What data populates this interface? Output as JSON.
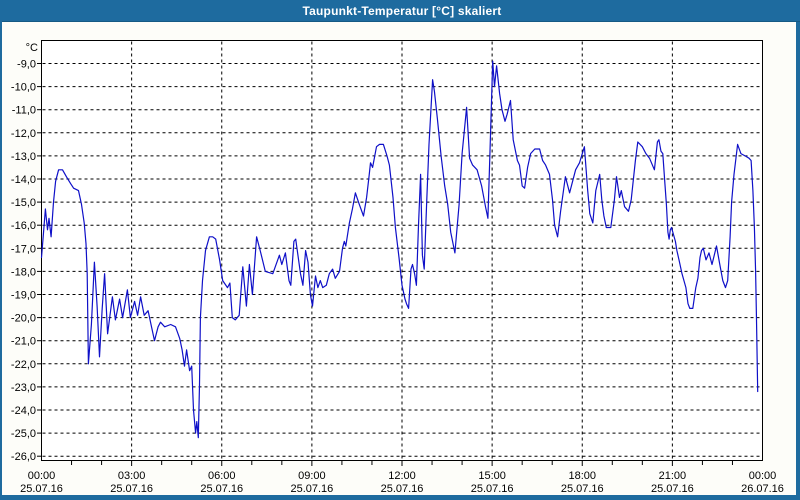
{
  "window": {
    "title": "Taupunkt-Temperatur [°C] skaliert",
    "titlebar_color": "#1e6b9f",
    "background_color": "#fdfdf9"
  },
  "chart_data": {
    "type": "line",
    "title": "Taupunkt-Temperatur [°C] skaliert",
    "unit_label": "°C",
    "line_color": "#0f10c8",
    "grid": "dashed",
    "grid_color": "#000000",
    "plot_background": "#ffffff",
    "legend_position": "none",
    "y_axis": {
      "min": -26.0,
      "max": -9.0,
      "tick_step": 1.0,
      "tick_labels": [
        "-9,0",
        "-10,0",
        "-11,0",
        "-12,0",
        "-13,0",
        "-14,0",
        "-15,0",
        "-16,0",
        "-17,0",
        "-18,0",
        "-19,0",
        "-20,0",
        "-21,0",
        "-22,0",
        "-23,0",
        "-24,0",
        "-25,0",
        "-26,0"
      ]
    },
    "x_axis": {
      "min_hour": 0,
      "max_hour": 24,
      "major_tick_hours": 3,
      "minor_tick_hours": 1,
      "tick_labels": [
        {
          "time": "00:00",
          "date": "25.07.16"
        },
        {
          "time": "03:00",
          "date": "25.07.16"
        },
        {
          "time": "06:00",
          "date": "25.07.16"
        },
        {
          "time": "09:00",
          "date": "25.07.16"
        },
        {
          "time": "12:00",
          "date": "25.07.16"
        },
        {
          "time": "15:00",
          "date": "25.07.16"
        },
        {
          "time": "18:00",
          "date": "25.07.16"
        },
        {
          "time": "21:00",
          "date": "25.07.16"
        },
        {
          "time": "00:00",
          "date": "26.07.16"
        }
      ]
    },
    "series": [
      {
        "name": "Taupunkt-Temperatur",
        "points": [
          [
            0.0,
            -17.4
          ],
          [
            0.05,
            -16.6
          ],
          [
            0.13,
            -15.3
          ],
          [
            0.2,
            -16.2
          ],
          [
            0.25,
            -15.7
          ],
          [
            0.32,
            -16.5
          ],
          [
            0.4,
            -15.0
          ],
          [
            0.47,
            -14.1
          ],
          [
            0.57,
            -13.6
          ],
          [
            0.7,
            -13.6
          ],
          [
            0.83,
            -13.9
          ],
          [
            0.97,
            -14.2
          ],
          [
            1.07,
            -14.4
          ],
          [
            1.23,
            -14.5
          ],
          [
            1.33,
            -15.1
          ],
          [
            1.42,
            -15.9
          ],
          [
            1.48,
            -16.8
          ],
          [
            1.52,
            -18.1
          ],
          [
            1.56,
            -22.0
          ],
          [
            1.66,
            -20.3
          ],
          [
            1.76,
            -17.6
          ],
          [
            1.85,
            -19.5
          ],
          [
            1.93,
            -21.7
          ],
          [
            2.02,
            -19.6
          ],
          [
            2.1,
            -18.1
          ],
          [
            2.2,
            -20.7
          ],
          [
            2.36,
            -19.1
          ],
          [
            2.46,
            -20.1
          ],
          [
            2.6,
            -19.2
          ],
          [
            2.7,
            -20.0
          ],
          [
            2.86,
            -18.8
          ],
          [
            2.96,
            -20.0
          ],
          [
            3.1,
            -19.3
          ],
          [
            3.2,
            -19.9
          ],
          [
            3.3,
            -19.1
          ],
          [
            3.42,
            -19.9
          ],
          [
            3.55,
            -19.7
          ],
          [
            3.66,
            -20.4
          ],
          [
            3.76,
            -21.0
          ],
          [
            3.88,
            -20.4
          ],
          [
            3.96,
            -20.2
          ],
          [
            4.1,
            -20.4
          ],
          [
            4.3,
            -20.3
          ],
          [
            4.46,
            -20.4
          ],
          [
            4.6,
            -20.9
          ],
          [
            4.68,
            -21.4
          ],
          [
            4.76,
            -22.1
          ],
          [
            4.83,
            -21.4
          ],
          [
            4.93,
            -22.3
          ],
          [
            5.0,
            -22.1
          ],
          [
            5.06,
            -24.0
          ],
          [
            5.13,
            -25.0
          ],
          [
            5.17,
            -24.5
          ],
          [
            5.22,
            -25.2
          ],
          [
            5.26,
            -22.9
          ],
          [
            5.29,
            -20.0
          ],
          [
            5.36,
            -18.4
          ],
          [
            5.46,
            -17.1
          ],
          [
            5.59,
            -16.5
          ],
          [
            5.7,
            -16.5
          ],
          [
            5.8,
            -16.6
          ],
          [
            5.93,
            -17.5
          ],
          [
            6.03,
            -18.4
          ],
          [
            6.19,
            -18.7
          ],
          [
            6.27,
            -18.5
          ],
          [
            6.35,
            -20.0
          ],
          [
            6.45,
            -20.1
          ],
          [
            6.58,
            -19.9
          ],
          [
            6.7,
            -17.8
          ],
          [
            6.82,
            -19.5
          ],
          [
            6.92,
            -17.7
          ],
          [
            7.02,
            -19.0
          ],
          [
            7.16,
            -16.5
          ],
          [
            7.28,
            -17.1
          ],
          [
            7.45,
            -18.0
          ],
          [
            7.7,
            -18.1
          ],
          [
            7.92,
            -17.3
          ],
          [
            8.0,
            -17.7
          ],
          [
            8.12,
            -17.2
          ],
          [
            8.24,
            -18.4
          ],
          [
            8.3,
            -18.6
          ],
          [
            8.4,
            -16.7
          ],
          [
            8.46,
            -16.6
          ],
          [
            8.62,
            -18.1
          ],
          [
            8.7,
            -18.6
          ],
          [
            8.79,
            -17.1
          ],
          [
            8.87,
            -17.6
          ],
          [
            8.95,
            -19.0
          ],
          [
            9.02,
            -19.5
          ],
          [
            9.12,
            -18.2
          ],
          [
            9.2,
            -18.7
          ],
          [
            9.28,
            -18.4
          ],
          [
            9.36,
            -18.7
          ],
          [
            9.48,
            -18.6
          ],
          [
            9.58,
            -18.1
          ],
          [
            9.69,
            -17.9
          ],
          [
            9.78,
            -18.3
          ],
          [
            9.92,
            -18.0
          ],
          [
            10.02,
            -17.0
          ],
          [
            10.08,
            -16.7
          ],
          [
            10.13,
            -16.9
          ],
          [
            10.25,
            -15.9
          ],
          [
            10.35,
            -15.3
          ],
          [
            10.45,
            -14.6
          ],
          [
            10.58,
            -15.1
          ],
          [
            10.72,
            -15.6
          ],
          [
            10.82,
            -14.8
          ],
          [
            10.9,
            -13.9
          ],
          [
            10.95,
            -13.3
          ],
          [
            11.02,
            -13.5
          ],
          [
            11.15,
            -12.6
          ],
          [
            11.25,
            -12.5
          ],
          [
            11.38,
            -12.5
          ],
          [
            11.5,
            -13.0
          ],
          [
            11.58,
            -13.4
          ],
          [
            11.7,
            -14.8
          ],
          [
            11.78,
            -16.1
          ],
          [
            11.9,
            -17.4
          ],
          [
            12.0,
            -18.6
          ],
          [
            12.1,
            -19.2
          ],
          [
            12.15,
            -19.4
          ],
          [
            12.22,
            -19.6
          ],
          [
            12.3,
            -17.9
          ],
          [
            12.35,
            -17.7
          ],
          [
            12.42,
            -18.1
          ],
          [
            12.48,
            -18.6
          ],
          [
            12.55,
            -16.0
          ],
          [
            12.62,
            -13.8
          ],
          [
            12.68,
            -17.3
          ],
          [
            12.74,
            -17.9
          ],
          [
            12.82,
            -15.1
          ],
          [
            12.9,
            -12.5
          ],
          [
            13.02,
            -9.7
          ],
          [
            13.08,
            -10.2
          ],
          [
            13.18,
            -11.4
          ],
          [
            13.3,
            -13.0
          ],
          [
            13.42,
            -14.3
          ],
          [
            13.52,
            -15.1
          ],
          [
            13.62,
            -16.3
          ],
          [
            13.76,
            -17.2
          ],
          [
            13.9,
            -15.1
          ],
          [
            14.0,
            -12.9
          ],
          [
            14.15,
            -10.9
          ],
          [
            14.25,
            -13.1
          ],
          [
            14.35,
            -13.4
          ],
          [
            14.5,
            -13.6
          ],
          [
            14.65,
            -14.3
          ],
          [
            14.78,
            -15.2
          ],
          [
            14.86,
            -15.7
          ],
          [
            14.93,
            -12.8
          ],
          [
            15.02,
            -8.9
          ],
          [
            15.08,
            -10.0
          ],
          [
            15.15,
            -9.1
          ],
          [
            15.25,
            -10.3
          ],
          [
            15.33,
            -11.0
          ],
          [
            15.43,
            -11.5
          ],
          [
            15.5,
            -11.2
          ],
          [
            15.61,
            -10.6
          ],
          [
            15.7,
            -12.3
          ],
          [
            15.84,
            -13.2
          ],
          [
            15.91,
            -13.4
          ],
          [
            16.0,
            -14.3
          ],
          [
            16.08,
            -14.4
          ],
          [
            16.18,
            -13.5
          ],
          [
            16.28,
            -12.9
          ],
          [
            16.42,
            -12.7
          ],
          [
            16.58,
            -12.7
          ],
          [
            16.68,
            -13.2
          ],
          [
            16.78,
            -13.4
          ],
          [
            16.91,
            -13.8
          ],
          [
            17.01,
            -14.9
          ],
          [
            17.08,
            -16.0
          ],
          [
            17.18,
            -16.5
          ],
          [
            17.28,
            -15.4
          ],
          [
            17.44,
            -13.9
          ],
          [
            17.58,
            -14.6
          ],
          [
            17.68,
            -14.1
          ],
          [
            17.78,
            -13.6
          ],
          [
            17.91,
            -13.3
          ],
          [
            18.07,
            -12.6
          ],
          [
            18.18,
            -14.5
          ],
          [
            18.25,
            -15.5
          ],
          [
            18.35,
            -15.9
          ],
          [
            18.45,
            -14.5
          ],
          [
            18.58,
            -13.8
          ],
          [
            18.65,
            -14.9
          ],
          [
            18.72,
            -15.6
          ],
          [
            18.8,
            -16.1
          ],
          [
            18.95,
            -16.1
          ],
          [
            19.07,
            -14.9
          ],
          [
            19.14,
            -13.9
          ],
          [
            19.24,
            -14.8
          ],
          [
            19.3,
            -14.5
          ],
          [
            19.41,
            -15.2
          ],
          [
            19.54,
            -15.4
          ],
          [
            19.63,
            -14.9
          ],
          [
            19.77,
            -13.2
          ],
          [
            19.85,
            -12.4
          ],
          [
            20.0,
            -12.6
          ],
          [
            20.12,
            -12.9
          ],
          [
            20.24,
            -13.1
          ],
          [
            20.4,
            -13.6
          ],
          [
            20.5,
            -12.4
          ],
          [
            20.55,
            -12.3
          ],
          [
            20.62,
            -12.8
          ],
          [
            20.68,
            -12.9
          ],
          [
            20.75,
            -14.2
          ],
          [
            20.8,
            -15.1
          ],
          [
            20.85,
            -16.3
          ],
          [
            20.89,
            -16.6
          ],
          [
            20.93,
            -16.2
          ],
          [
            20.97,
            -16.1
          ],
          [
            21.1,
            -16.7
          ],
          [
            21.15,
            -17.1
          ],
          [
            21.22,
            -17.5
          ],
          [
            21.32,
            -18.1
          ],
          [
            21.45,
            -18.7
          ],
          [
            21.52,
            -19.4
          ],
          [
            21.58,
            -19.6
          ],
          [
            21.68,
            -19.6
          ],
          [
            21.78,
            -18.7
          ],
          [
            21.85,
            -18.3
          ],
          [
            21.92,
            -17.4
          ],
          [
            21.97,
            -17.1
          ],
          [
            22.03,
            -17.0
          ],
          [
            22.12,
            -17.5
          ],
          [
            22.22,
            -17.2
          ],
          [
            22.32,
            -17.7
          ],
          [
            22.47,
            -16.9
          ],
          [
            22.58,
            -17.7
          ],
          [
            22.68,
            -18.4
          ],
          [
            22.77,
            -18.7
          ],
          [
            22.84,
            -18.4
          ],
          [
            22.92,
            -16.5
          ],
          [
            22.97,
            -15.0
          ],
          [
            23.05,
            -13.8
          ],
          [
            23.17,
            -12.5
          ],
          [
            23.28,
            -12.9
          ],
          [
            23.42,
            -13.0
          ],
          [
            23.55,
            -13.1
          ],
          [
            23.62,
            -13.2
          ],
          [
            23.68,
            -14.5
          ],
          [
            23.73,
            -16.1
          ],
          [
            23.77,
            -18.0
          ],
          [
            23.8,
            -20.1
          ],
          [
            23.84,
            -23.2
          ]
        ]
      }
    ]
  }
}
